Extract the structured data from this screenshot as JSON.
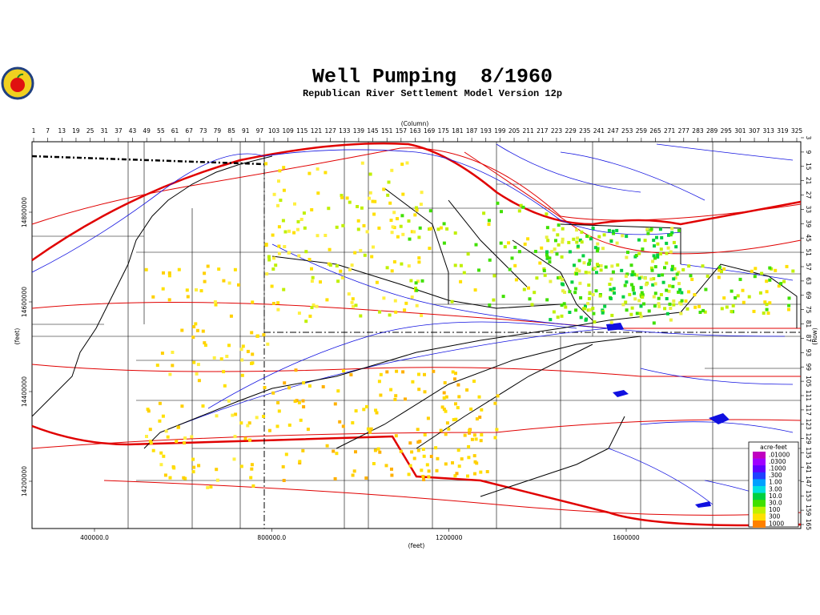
{
  "header": {
    "title": "Well Pumping  8/1960",
    "subtitle": "Republican River Settlement Model Version 12p"
  },
  "axes": {
    "top": {
      "label": "(Column)",
      "ticks": [
        1,
        7,
        13,
        19,
        25,
        31,
        37,
        43,
        49,
        55,
        61,
        67,
        73,
        79,
        85,
        91,
        97,
        103,
        109,
        115,
        121,
        127,
        133,
        139,
        145,
        151,
        157,
        163,
        169,
        175,
        181,
        187,
        193,
        199,
        205,
        211,
        217,
        223,
        229,
        235,
        241,
        247,
        253,
        259,
        265,
        271,
        277,
        283,
        289,
        295,
        301,
        307,
        313,
        319,
        325
      ]
    },
    "right": {
      "label": "(Row)",
      "ticks": [
        3,
        9,
        15,
        21,
        27,
        33,
        39,
        45,
        51,
        57,
        63,
        69,
        75,
        81,
        87,
        93,
        99,
        105,
        111,
        117,
        123,
        129,
        135,
        141,
        147,
        153,
        159,
        165
      ]
    },
    "left": {
      "label": "(feet)",
      "ticks": [
        14800000,
        14600000,
        14400000,
        14200000
      ]
    },
    "bottom": {
      "label": "(feet)",
      "ticks": [
        {
          "value": 400000,
          "label": "400000.0"
        },
        {
          "value": 800000,
          "label": "800000.0"
        },
        1200000,
        1600000
      ]
    }
  },
  "legend": {
    "title": "acre-feet",
    "items": [
      {
        "label": ".01000",
        "color": "#c000c0"
      },
      {
        "label": ".0300",
        "color": "#a000ff"
      },
      {
        "label": ".1000",
        "color": "#6000ff"
      },
      {
        "label": ".300",
        "color": "#2040ff"
      },
      {
        "label": "1.00",
        "color": "#00a0ff"
      },
      {
        "label": "3.00",
        "color": "#00e0e0"
      },
      {
        "label": "10.0",
        "color": "#00d040"
      },
      {
        "label": "30.0",
        "color": "#40e000"
      },
      {
        "label": "100",
        "color": "#c0f000"
      },
      {
        "label": "300",
        "color": "#ffe000"
      },
      {
        "label": "1000",
        "color": "#ff8000"
      }
    ]
  }
}
